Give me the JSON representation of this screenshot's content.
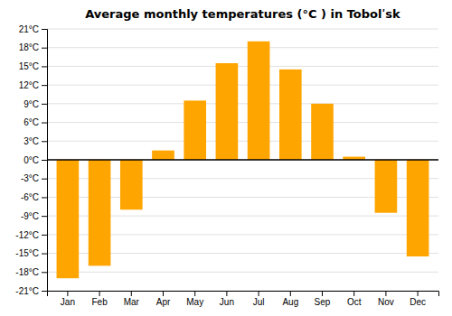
{
  "chart_data": {
    "type": "bar",
    "title": "Average monthly temperatures (°C ) in Tobolʹsk",
    "categories": [
      "Jan",
      "Feb",
      "Mar",
      "Apr",
      "May",
      "Jun",
      "Jul",
      "Aug",
      "Sep",
      "Oct",
      "Nov",
      "Dec"
    ],
    "values": [
      -19,
      -17,
      -8,
      1.5,
      9.5,
      15.5,
      19,
      14.5,
      9,
      0.5,
      -8.5,
      -15.5
    ],
    "color": "#FFA500",
    "ylim": [
      -21,
      21
    ],
    "yticks": [
      {
        "value": -21,
        "label": "-21°C"
      },
      {
        "value": -18,
        "label": "-18°C"
      },
      {
        "value": -15,
        "label": "-15°C"
      },
      {
        "value": -12,
        "label": "-12°C"
      },
      {
        "value": -9,
        "label": "-9°C"
      },
      {
        "value": -6,
        "label": "-6°C"
      },
      {
        "value": -3,
        "label": "-3°C"
      },
      {
        "value": 0,
        "label": "0°C"
      },
      {
        "value": 3,
        "label": "3°C"
      },
      {
        "value": 6,
        "label": "6°C"
      },
      {
        "value": 9,
        "label": "9°C"
      },
      {
        "value": 12,
        "label": "12°C"
      },
      {
        "value": 15,
        "label": "15°C"
      },
      {
        "value": 18,
        "label": "18°C"
      },
      {
        "value": 21,
        "label": "21°C"
      }
    ],
    "grid": true
  }
}
